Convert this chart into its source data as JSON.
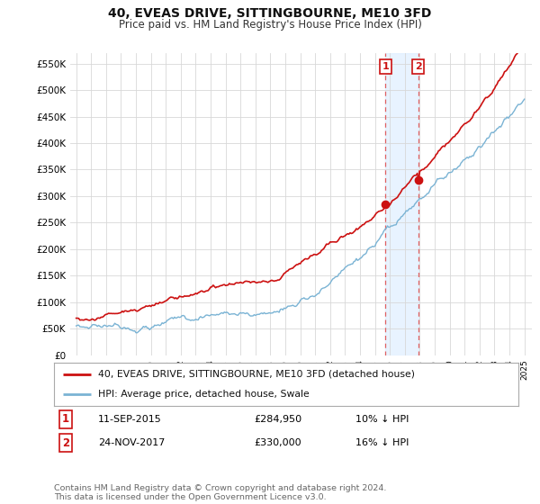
{
  "title": "40, EVEAS DRIVE, SITTINGBOURNE, ME10 3FD",
  "subtitle": "Price paid vs. HM Land Registry's House Price Index (HPI)",
  "ylim": [
    0,
    570000
  ],
  "yticks": [
    0,
    50000,
    100000,
    150000,
    200000,
    250000,
    300000,
    350000,
    400000,
    450000,
    500000,
    550000
  ],
  "ytick_labels": [
    "£0",
    "£50K",
    "£100K",
    "£150K",
    "£200K",
    "£250K",
    "£300K",
    "£350K",
    "£400K",
    "£450K",
    "£500K",
    "£550K"
  ],
  "hpi_color": "#7ab3d4",
  "price_color": "#cc1111",
  "marker1_year": 2015.7,
  "marker1_price": 284950,
  "marker2_year": 2017.9,
  "marker2_price": 330000,
  "legend_line1": "40, EVEAS DRIVE, SITTINGBOURNE, ME10 3FD (detached house)",
  "legend_line2": "HPI: Average price, detached house, Swale",
  "table_row1_num": "1",
  "table_row1_date": "11-SEP-2015",
  "table_row1_price": "£284,950",
  "table_row1_hpi": "10% ↓ HPI",
  "table_row2_num": "2",
  "table_row2_date": "24-NOV-2017",
  "table_row2_price": "£330,000",
  "table_row2_hpi": "16% ↓ HPI",
  "footnote": "Contains HM Land Registry data © Crown copyright and database right 2024.\nThis data is licensed under the Open Government Licence v3.0.",
  "bg_color": "#ffffff",
  "grid_color": "#d8d8d8",
  "shaded_color": "#ddeeff",
  "dashed_color": "#e06060"
}
